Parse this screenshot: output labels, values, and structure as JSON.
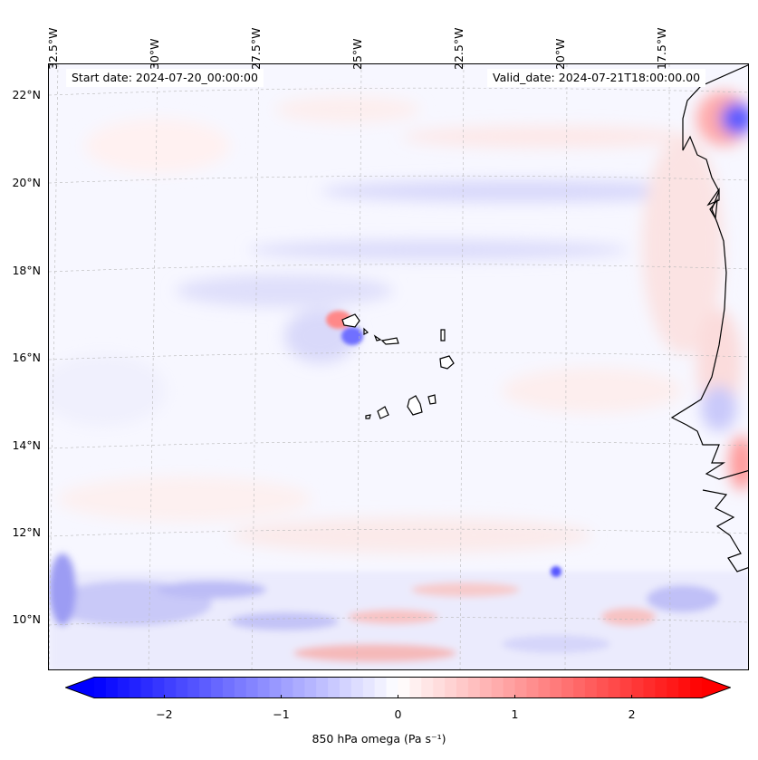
{
  "map": {
    "start_date": "Start date: 2024-07-20_00:00:00",
    "valid_date": "Valid_date: 2024-07-21T18:00:00.00",
    "lon_labels": [
      "32.5°W",
      "30°W",
      "27.5°W",
      "25°W",
      "22.5°W",
      "20°W",
      "17.5°W"
    ],
    "lat_labels": [
      "22°N",
      "20°N",
      "18°N",
      "16°N",
      "14°N",
      "12°N",
      "10°N"
    ]
  },
  "colorbar": {
    "label": "850 hPa omega (Pa s⁻¹)",
    "ticks": [
      "−2",
      "−1",
      "0",
      "1",
      "2"
    ],
    "tick_values": [
      -2,
      -1,
      0,
      1,
      2
    ],
    "range": [
      -2.6,
      2.6
    ],
    "colors": {
      "negative": "#0000ff",
      "zero": "#ffffff",
      "positive": "#ff0000"
    }
  }
}
